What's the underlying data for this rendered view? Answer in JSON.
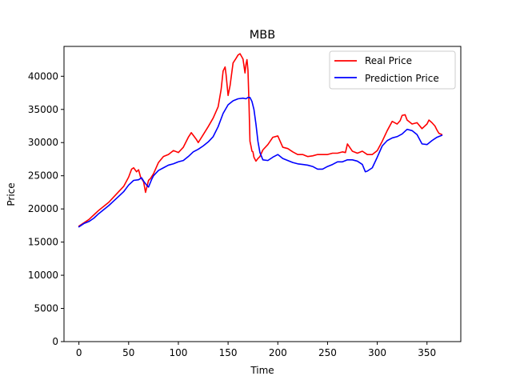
{
  "chart_data": {
    "type": "line",
    "title": "MBB",
    "xlabel": "Time",
    "ylabel": "Price",
    "xlim": [
      -15,
      384
    ],
    "ylim": [
      0,
      44500
    ],
    "xticks": [
      0,
      50,
      100,
      150,
      200,
      250,
      300,
      350
    ],
    "yticks": [
      0,
      5000,
      10000,
      15000,
      20000,
      25000,
      30000,
      35000,
      40000
    ],
    "grid": false,
    "legend_position": "top-right",
    "series": [
      {
        "name": "Real Price",
        "color": "#ff0000",
        "x": [
          0,
          5,
          10,
          15,
          20,
          25,
          30,
          35,
          40,
          45,
          50,
          53,
          55,
          58,
          60,
          62,
          65,
          67,
          70,
          72,
          75,
          80,
          85,
          90,
          95,
          100,
          105,
          110,
          113,
          115,
          118,
          120,
          125,
          130,
          135,
          140,
          143,
          145,
          147,
          148,
          150,
          152,
          155,
          158,
          160,
          162,
          165,
          167,
          168,
          169,
          170,
          171,
          172,
          173,
          174,
          175,
          176,
          178,
          180,
          182,
          185,
          190,
          195,
          200,
          205,
          210,
          215,
          220,
          225,
          230,
          235,
          240,
          245,
          250,
          255,
          260,
          265,
          268,
          270,
          275,
          280,
          285,
          290,
          295,
          300,
          305,
          310,
          315,
          320,
          323,
          325,
          328,
          330,
          335,
          340,
          345,
          350,
          352,
          355,
          358,
          360,
          362,
          365
        ],
        "y": [
          17400,
          17900,
          18400,
          19100,
          19800,
          20400,
          21000,
          21800,
          22600,
          23400,
          24800,
          26000,
          26200,
          25600,
          25900,
          24800,
          24100,
          22500,
          24300,
          24600,
          25300,
          27000,
          27900,
          28200,
          28800,
          28500,
          29300,
          30800,
          31500,
          31100,
          30500,
          30000,
          31200,
          32400,
          33700,
          35400,
          38000,
          40800,
          41400,
          40200,
          37100,
          38600,
          42000,
          42700,
          43200,
          43400,
          42600,
          40500,
          41800,
          42500,
          40900,
          36000,
          30200,
          29500,
          28700,
          28600,
          27800,
          27200,
          27600,
          27900,
          28900,
          29700,
          30800,
          31000,
          29300,
          29100,
          28600,
          28200,
          28200,
          27900,
          28000,
          28200,
          28200,
          28200,
          28400,
          28400,
          28600,
          28500,
          29800,
          28700,
          28400,
          28700,
          28200,
          28200,
          28800,
          30200,
          31800,
          33200,
          32800,
          33300,
          34100,
          34200,
          33400,
          32800,
          33000,
          32100,
          32800,
          33400,
          33000,
          32500,
          31900,
          31400,
          31200
        ]
      },
      {
        "name": "Prediction Price",
        "color": "#0000ff",
        "x": [
          0,
          5,
          10,
          15,
          20,
          25,
          30,
          35,
          40,
          45,
          50,
          55,
          60,
          63,
          65,
          68,
          70,
          73,
          75,
          80,
          85,
          90,
          95,
          100,
          105,
          110,
          115,
          120,
          125,
          130,
          135,
          140,
          145,
          150,
          155,
          160,
          165,
          168,
          170,
          172,
          174,
          176,
          178,
          180,
          182,
          185,
          190,
          195,
          200,
          205,
          210,
          215,
          220,
          225,
          230,
          235,
          240,
          245,
          250,
          255,
          260,
          265,
          270,
          275,
          280,
          285,
          288,
          290,
          295,
          300,
          305,
          310,
          315,
          320,
          325,
          330,
          335,
          340,
          345,
          350,
          355,
          360,
          365
        ],
        "y": [
          17300,
          17800,
          18100,
          18600,
          19300,
          19900,
          20500,
          21200,
          21900,
          22600,
          23600,
          24300,
          24400,
          24700,
          24200,
          23600,
          23300,
          24400,
          25000,
          25800,
          26200,
          26600,
          26800,
          27100,
          27300,
          27900,
          28600,
          29000,
          29500,
          30100,
          30900,
          32400,
          34400,
          35700,
          36300,
          36600,
          36700,
          36600,
          36800,
          36800,
          36200,
          35000,
          32800,
          30200,
          28500,
          27400,
          27300,
          27800,
          28200,
          27600,
          27300,
          27000,
          26800,
          26700,
          26600,
          26400,
          26000,
          26000,
          26400,
          26700,
          27100,
          27100,
          27400,
          27400,
          27200,
          26700,
          25600,
          25700,
          26200,
          27800,
          29500,
          30300,
          30700,
          30900,
          31300,
          32000,
          31800,
          31200,
          29800,
          29700,
          30300,
          30800,
          31100
        ]
      }
    ]
  }
}
